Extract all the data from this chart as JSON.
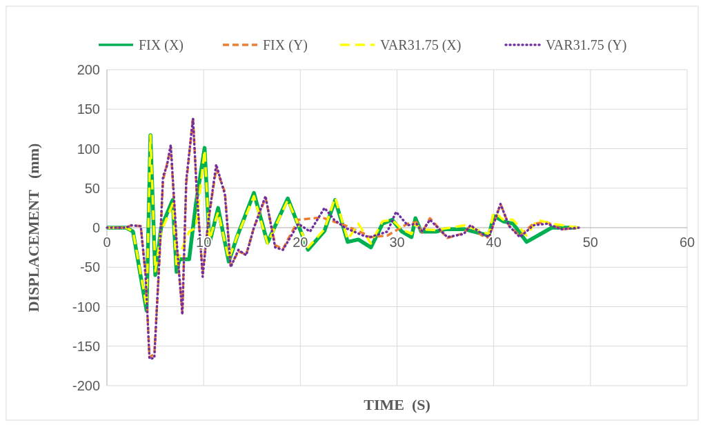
{
  "chart_data": {
    "type": "line",
    "xlabel": "TIME  (S)",
    "ylabel": "DISPLACEMENT   (mm)",
    "xlim": [
      0,
      60
    ],
    "xticks": [
      0,
      10,
      20,
      30,
      40,
      50,
      60
    ],
    "ylim": [
      -200,
      200
    ],
    "yticks": [
      -200,
      -150,
      -100,
      -50,
      0,
      50,
      100,
      150,
      200
    ],
    "grid": true,
    "legend": "top",
    "series": [
      {
        "name": "FIX (X)",
        "color": "#00b050",
        "line_style": "solid",
        "x": [
          0,
          2,
          2.7,
          4.1,
          4.5,
          5,
          5.6,
          6.8,
          7.2,
          7.5,
          8.5,
          9.2,
          10.1,
          10.6,
          11.5,
          12.6,
          13.5,
          15.2,
          16.6,
          18.7,
          20.8,
          22.5,
          23.6,
          24.9,
          26,
          27.3,
          28.5,
          29.5,
          30.5,
          31.5,
          31.9,
          32.5,
          34,
          35,
          37,
          39.5,
          40,
          41,
          42,
          43.4,
          46,
          48.5
        ],
        "values": [
          0,
          0,
          -5,
          -105,
          117,
          -60,
          0,
          35,
          -56,
          -40,
          -40,
          30,
          101,
          -20,
          25,
          -43,
          -10,
          44,
          -19,
          37,
          -28,
          -4,
          35,
          -18,
          -15,
          -25,
          5,
          10,
          -5,
          -12,
          12,
          -5,
          -5,
          -2,
          -2,
          -10,
          15,
          8,
          5,
          -18,
          0,
          0
        ]
      },
      {
        "name": "FIX (Y)",
        "color": "#ed7d31",
        "line_style": "dashed",
        "x": [
          0,
          2,
          2.5,
          3.5,
          4,
          4.4,
          4.9,
          5.4,
          5.8,
          6.2,
          6.6,
          7.2,
          7.8,
          8.2,
          8.9,
          9.3,
          9.9,
          10.5,
          11.3,
          12.2,
          12.8,
          13.6,
          14.4,
          15.2,
          16.4,
          17.4,
          18.2,
          19.8,
          22.2,
          24.6,
          26.5,
          27.2,
          29,
          31.1,
          32,
          32.6,
          33.4,
          35.2,
          36.9,
          37.6,
          38.8,
          39.5,
          40.7,
          41.6,
          42.7,
          44.1,
          45.5,
          47,
          48.8
        ],
        "values": [
          0,
          0,
          3,
          2,
          -60,
          -164,
          -160,
          -50,
          60,
          80,
          102,
          -20,
          -108,
          55,
          140,
          40,
          -58,
          10,
          75,
          45,
          -48,
          -30,
          -34,
          0,
          38,
          -22,
          -27,
          10,
          13,
          3,
          -7,
          -12,
          -10,
          5,
          7,
          -6,
          12,
          -13,
          -7,
          3,
          -10,
          -13,
          30,
          2,
          -10,
          5,
          7,
          -2,
          0
        ]
      },
      {
        "name": "VAR31.75 (X)",
        "color": "#ffff00",
        "line_style": "dashed",
        "x": [
          0,
          2,
          2.7,
          4.1,
          4.5,
          5,
          5.6,
          6.8,
          7.2,
          7.5,
          8.5,
          9.2,
          10.1,
          10.6,
          11.5,
          12.6,
          13.5,
          15.2,
          16.6,
          18.7,
          20.8,
          22.5,
          23.6,
          24.9,
          26,
          27.3,
          28.5,
          29.5,
          30.5,
          31.5,
          31.9,
          32.5,
          34,
          35,
          37,
          39.5,
          40,
          41,
          42,
          43.4,
          44.5,
          46,
          48.8
        ],
        "values": [
          0,
          0,
          -5,
          -100,
          117,
          -55,
          -5,
          30,
          -50,
          -35,
          -5,
          0,
          98,
          -15,
          20,
          -40,
          -10,
          40,
          -20,
          35,
          -25,
          -2,
          38,
          -15,
          5,
          -20,
          8,
          10,
          -2,
          -8,
          5,
          -2,
          -3,
          -1,
          3,
          -8,
          20,
          10,
          10,
          -10,
          10,
          5,
          0
        ]
      },
      {
        "name": "VAR31.75 (Y)",
        "color": "#7030a0",
        "line_style": "dotted",
        "x": [
          0,
          2,
          2.5,
          3.5,
          4,
          4.4,
          4.9,
          5.4,
          5.8,
          6.2,
          6.6,
          7.2,
          7.8,
          8.2,
          8.9,
          9.3,
          9.9,
          10.5,
          11.3,
          12.2,
          12.8,
          13.6,
          14.4,
          15.2,
          16.4,
          17.4,
          18.2,
          19.8,
          21,
          22.5,
          23.5,
          24.6,
          26.5,
          27.2,
          29,
          29.9,
          31.1,
          32,
          32.6,
          33.4,
          35.2,
          36.9,
          37.6,
          38.8,
          39.5,
          40.7,
          41.6,
          42.7,
          44.1,
          45.5,
          47,
          48.8
        ],
        "values": [
          0,
          0,
          3,
          2,
          -60,
          -166,
          -165,
          -45,
          65,
          78,
          105,
          -15,
          -110,
          60,
          138,
          45,
          -62,
          10,
          80,
          42,
          -50,
          -28,
          -35,
          0,
          40,
          -25,
          -28,
          5,
          -5,
          25,
          10,
          0,
          -10,
          -12,
          -5,
          20,
          3,
          5,
          -5,
          10,
          -12,
          -8,
          3,
          -8,
          -12,
          30,
          2,
          -12,
          3,
          5,
          -2,
          0
        ]
      }
    ]
  }
}
